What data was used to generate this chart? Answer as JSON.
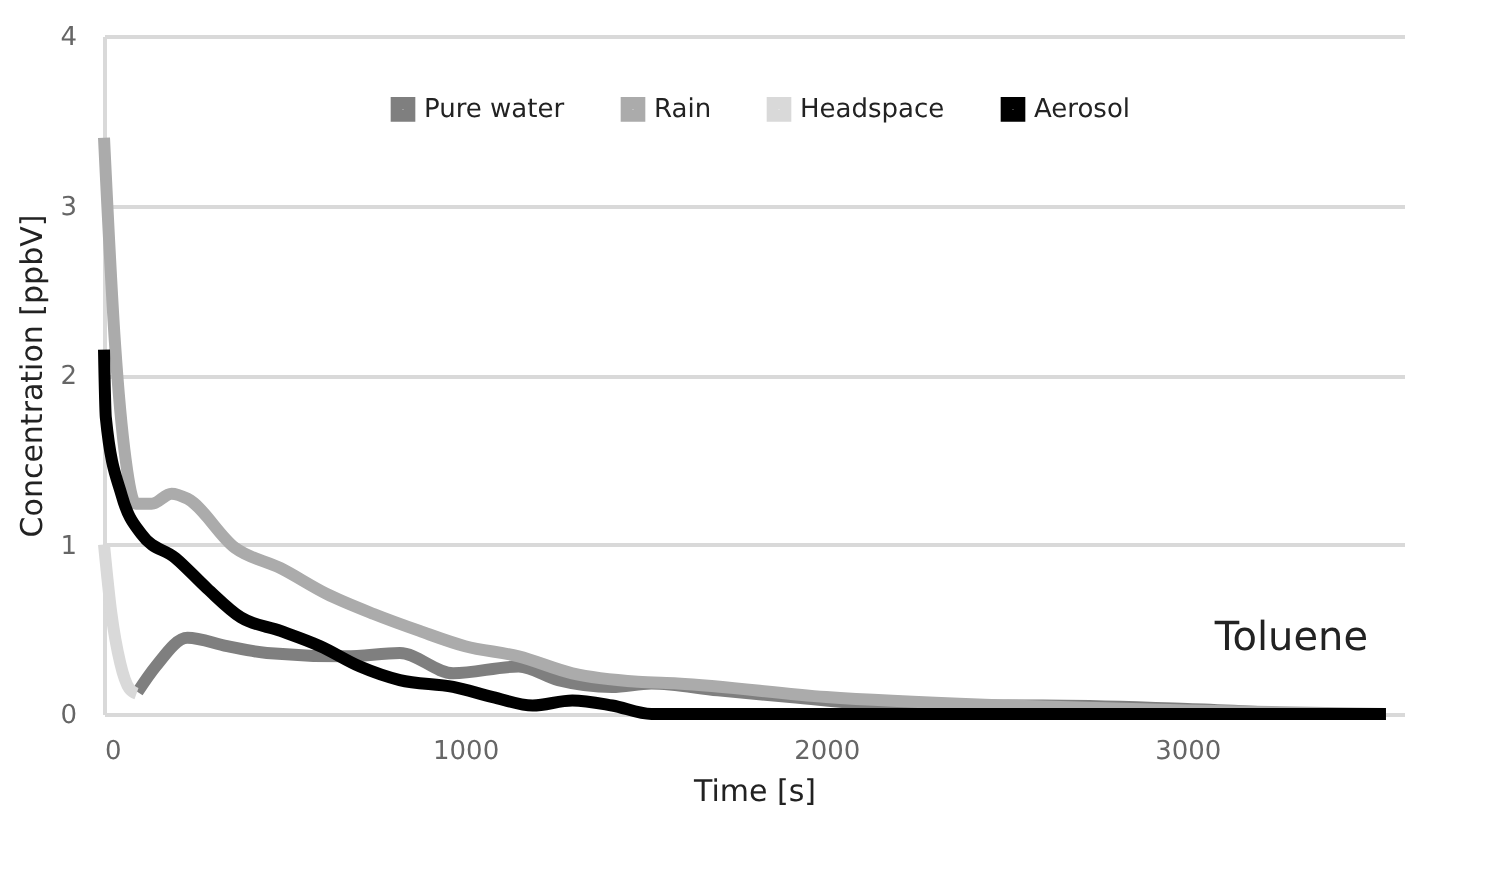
{
  "chart_data": {
    "type": "line",
    "xlabel": "Time [s]",
    "ylabel": "Concentration [ppbV]",
    "xlim": [
      0,
      3600
    ],
    "xticks": [
      0,
      1000,
      2000,
      3000
    ],
    "ylim": [
      0,
      4
    ],
    "yticks": [
      0,
      1,
      2,
      3,
      4
    ],
    "grid": "y",
    "legend": "top",
    "annotations": [
      "Toluene"
    ],
    "series": [
      {
        "name": "Pure water",
        "color": "#7f7f7f",
        "x": [
          93,
          143,
          231,
          341,
          451,
          670,
          819,
          967,
          1148,
          1258,
          1407,
          1516,
          1700,
          1900,
          2200,
          2600,
          3000,
          3400,
          3550
        ],
        "values": [
          0.13,
          0.28,
          0.45,
          0.4,
          0.36,
          0.34,
          0.36,
          0.24,
          0.28,
          0.2,
          0.16,
          0.18,
          0.14,
          0.1,
          0.05,
          0.05,
          0.03,
          0,
          0
        ]
      },
      {
        "name": "Rain",
        "color": "#ababab",
        "x": [
          0,
          30,
          60,
          88,
          132,
          187,
          231,
          363,
          489,
          615,
          747,
          874,
          1000,
          1148,
          1297,
          1478,
          1588,
          2000,
          2500,
          3000,
          3550
        ],
        "values": [
          3.4,
          2.2,
          1.5,
          1.24,
          1.24,
          1.3,
          1.27,
          0.98,
          0.86,
          0.71,
          0.59,
          0.49,
          0.4,
          0.34,
          0.24,
          0.19,
          0.18,
          0.1,
          0.05,
          0.02,
          0
        ]
      },
      {
        "name": "Headspace",
        "color": "#d9d9d9",
        "x": [
          0,
          20,
          45,
          70,
          90
        ],
        "values": [
          1.0,
          0.6,
          0.3,
          0.15,
          0.12
        ]
      },
      {
        "name": "Aerosol",
        "color": "#000000",
        "x": [
          0,
          5,
          49,
          104,
          198,
          286,
          379,
          489,
          599,
          709,
          819,
          967,
          1077,
          1187,
          1297,
          1407,
          1516,
          2000,
          2400,
          2800,
          3200,
          3550
        ],
        "values": [
          2.15,
          1.75,
          1.29,
          1.06,
          0.92,
          0.74,
          0.57,
          0.49,
          0.4,
          0.28,
          0.2,
          0.16,
          0.1,
          0.05,
          0.08,
          0.05,
          0,
          0,
          0,
          0,
          0,
          0
        ]
      }
    ]
  }
}
